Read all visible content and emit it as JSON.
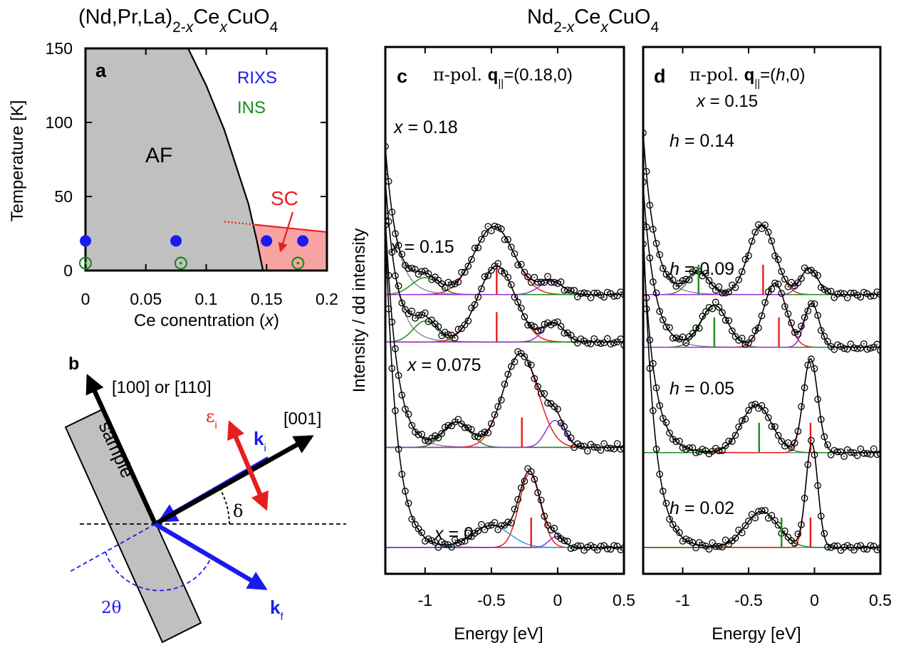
{
  "titles": {
    "left": {
      "base": "(Nd,Pr,La)",
      "sub1": "2-",
      "sub1_italic": "x",
      "mid": "Ce",
      "sub2_italic": "x",
      "end": "CuO",
      "sub3": "4"
    },
    "right": {
      "base": "Nd",
      "sub1": "2-",
      "sub1_italic": "x",
      "mid": "Ce",
      "sub2_italic": "x",
      "end": "CuO",
      "sub3": "4"
    }
  },
  "colors": {
    "rixs": "#1a1aee",
    "ins": "#1a8c1a",
    "sc": "#e61e1e",
    "sc_fill": "#f7a3a3",
    "af_fill": "#c0c0c0",
    "fit_red": "#e61e1e",
    "fit_green": "#1e8c1e",
    "fit_purple": "#9b2fd6",
    "fit_blue": "#2aa0e6",
    "fit_gray": "#888888"
  },
  "panel_a": {
    "label": "a",
    "legend": [
      "RIXS",
      "INS"
    ],
    "region_labels": {
      "af": "AF",
      "sc": "SC"
    },
    "xlabel_pre": "Ce conentration (",
    "xlabel_var": "x",
    "xlabel_post": ")",
    "ylabel": "Temperature [K]",
    "xticks": [
      "0",
      "0.05",
      "0.1",
      "0.15",
      "0.2"
    ],
    "yticks": [
      "0",
      "50",
      "100",
      "150"
    ]
  },
  "panel_b": {
    "label": "b",
    "labels": {
      "sample": "sample",
      "dir1": "[100] or [110]",
      "dir2": "[001]",
      "ki": "k",
      "ki_sub": "i",
      "kf": "k",
      "kf_sub": "f",
      "eps": "ε",
      "eps_sub": "i",
      "delta": "δ",
      "twotheta": "2θ"
    }
  },
  "panel_c": {
    "label": "c",
    "header_pol": "π-pol. ",
    "header_q": "q",
    "header_q_sub": "||",
    "header_val": "=(0.18,0)",
    "curve_labels": [
      {
        "var": "x",
        "val": " = 0.18"
      },
      {
        "var": "x",
        "val": " = 0.15"
      },
      {
        "var": "x",
        "val": " = 0.075"
      },
      {
        "var": "x",
        "val": " = 0"
      }
    ],
    "xlabel": "Energy [eV]",
    "xticks": [
      "-1",
      "-0.5",
      "0",
      "0.5"
    ]
  },
  "panel_d": {
    "label": "d",
    "header_pol": "π-pol. ",
    "header_q": "q",
    "header_q_sub": "||",
    "header_val_pre": "=(",
    "header_var": "h",
    "header_val_post": ",0)",
    "header2_var": "x",
    "header2_val": " = 0.15",
    "curve_labels": [
      {
        "var": "h",
        "val": " = 0.14"
      },
      {
        "var": "h",
        "val": " = 0.09"
      },
      {
        "var": "h",
        "val": " = 0.05"
      },
      {
        "var": "h",
        "val": " = 0.02"
      }
    ],
    "xlabel": "Energy [eV]",
    "xticks": [
      "-1",
      "-0.5",
      "0",
      "0.5"
    ]
  },
  "ylabel_cd": "Intensity / dd intensity",
  "chart_data": [
    {
      "type": "scatter",
      "panel": "a",
      "xlabel": "Ce conentration (x)",
      "ylabel": "Temperature [K]",
      "xlim": [
        0,
        0.2
      ],
      "ylim": [
        0,
        150
      ],
      "af_boundary": [
        [
          0.085,
          150
        ],
        [
          0.1,
          125
        ],
        [
          0.115,
          95
        ],
        [
          0.125,
          70
        ],
        [
          0.135,
          45
        ],
        [
          0.142,
          20
        ],
        [
          0.147,
          0
        ]
      ],
      "sc_dome_top": [
        [
          0.14,
          31
        ],
        [
          0.2,
          26
        ]
      ],
      "sc_dotted_ext": [
        [
          0.115,
          33
        ],
        [
          0.14,
          31
        ]
      ],
      "series": [
        {
          "name": "RIXS",
          "points": [
            [
              0,
              20
            ],
            [
              0.075,
              20
            ],
            [
              0.15,
              20
            ],
            [
              0.18,
              20
            ]
          ]
        },
        {
          "name": "INS",
          "points": [
            [
              0,
              5
            ],
            [
              0.079,
              5
            ],
            [
              0.176,
              5
            ]
          ]
        }
      ]
    },
    {
      "type": "scatter",
      "panel": "c",
      "xlabel": "Energy [eV]",
      "xlim": [
        -1.3,
        0.5
      ],
      "spectra": [
        {
          "label": "x = 0.18",
          "baseline": 0.53,
          "scale": 0.85,
          "tail": 3.2,
          "peaks": [
            {
              "c": -0.48,
              "w": 0.3,
              "a": 3.4,
              "color": "red"
            },
            {
              "c": -1.0,
              "w": 0.2,
              "a": 0.85,
              "color": "green"
            },
            {
              "c": -0.05,
              "w": 0.18,
              "a": 0.65,
              "color": "purple"
            }
          ],
          "marker": {
            "pos": -0.46,
            "color": "red"
          }
        },
        {
          "label": "x = 0.15",
          "baseline": 0.44,
          "scale": 0.85,
          "tail": 3.5,
          "peaks": [
            {
              "c": -0.46,
              "w": 0.28,
              "a": 3.8,
              "color": "red"
            },
            {
              "c": -1.0,
              "w": 0.18,
              "a": 1.05,
              "color": "green"
            },
            {
              "c": -0.03,
              "w": 0.16,
              "a": 0.95,
              "color": "purple"
            }
          ],
          "marker": {
            "pos": -0.46,
            "color": "red"
          }
        },
        {
          "label": "x = 0.075",
          "baseline": 0.24,
          "scale": 0.85,
          "tail": 5.0,
          "peaks": [
            {
              "c": -0.28,
              "w": 0.26,
              "a": 4.7,
              "color": "red"
            },
            {
              "c": -0.76,
              "w": 0.2,
              "a": 1.25,
              "color": "green"
            },
            {
              "c": -0.02,
              "w": 0.14,
              "a": 1.35,
              "color": "purple"
            }
          ],
          "marker": {
            "pos": -0.27,
            "color": "red"
          }
        },
        {
          "label": "x = 0",
          "baseline": 0.05,
          "scale": 0.85,
          "tail": 7.0,
          "peaks": [
            {
              "c": -0.21,
              "w": 0.16,
              "a": 3.7,
              "color": "red"
            },
            {
              "c": -0.5,
              "w": 0.28,
              "a": 1.1,
              "color": "blue"
            },
            {
              "c": -0.01,
              "w": 0.11,
              "a": 0.55,
              "color": "purple"
            }
          ],
          "marker": {
            "pos": -0.2,
            "color": "red"
          }
        }
      ]
    },
    {
      "type": "scatter",
      "panel": "d",
      "xlabel": "Energy [eV]",
      "xlim": [
        -1.3,
        0.5
      ],
      "spectra": [
        {
          "label": "h = 0.14",
          "baseline": 0.53,
          "scale": 0.85,
          "tail": 3.5,
          "peaks": [
            {
              "c": -0.4,
              "w": 0.2,
              "a": 3.5,
              "color": "red"
            },
            {
              "c": -0.88,
              "w": 0.16,
              "a": 1.1,
              "color": "green"
            },
            {
              "c": -0.04,
              "w": 0.13,
              "a": 1.3,
              "color": "purple"
            }
          ],
          "marker": {
            "pos": -0.39,
            "green_pos": -0.88
          }
        },
        {
          "label": "h = 0.09",
          "baseline": 0.43,
          "scale": 0.85,
          "tail": 3.5,
          "peaks": [
            {
              "c": -0.3,
              "w": 0.17,
              "a": 3.2,
              "color": "red"
            },
            {
              "c": -0.76,
              "w": 0.2,
              "a": 2.1,
              "color": "green"
            },
            {
              "c": -0.02,
              "w": 0.11,
              "a": 2.2,
              "color": "purple"
            }
          ],
          "marker": {
            "pos": -0.27,
            "green_pos": -0.76
          }
        },
        {
          "label": "h = 0.05",
          "baseline": 0.23,
          "scale": 0.85,
          "tail": 4.5,
          "peaks": [
            {
              "c": -0.03,
              "w": 0.11,
              "a": 4.7,
              "color": "red"
            },
            {
              "c": -0.44,
              "w": 0.23,
              "a": 2.4,
              "color": "green"
            }
          ],
          "marker": {
            "pos": -0.03,
            "green_pos": -0.42
          }
        },
        {
          "label": "h = 0.02",
          "baseline": 0.05,
          "scale": 0.85,
          "tail": 7.0,
          "peaks": [
            {
              "c": -0.02,
              "w": 0.09,
              "a": 5.2,
              "color": "red"
            },
            {
              "c": -0.4,
              "w": 0.25,
              "a": 1.8,
              "color": "green"
            }
          ],
          "marker": {
            "pos": -0.03,
            "green_pos": -0.25
          }
        }
      ]
    }
  ]
}
